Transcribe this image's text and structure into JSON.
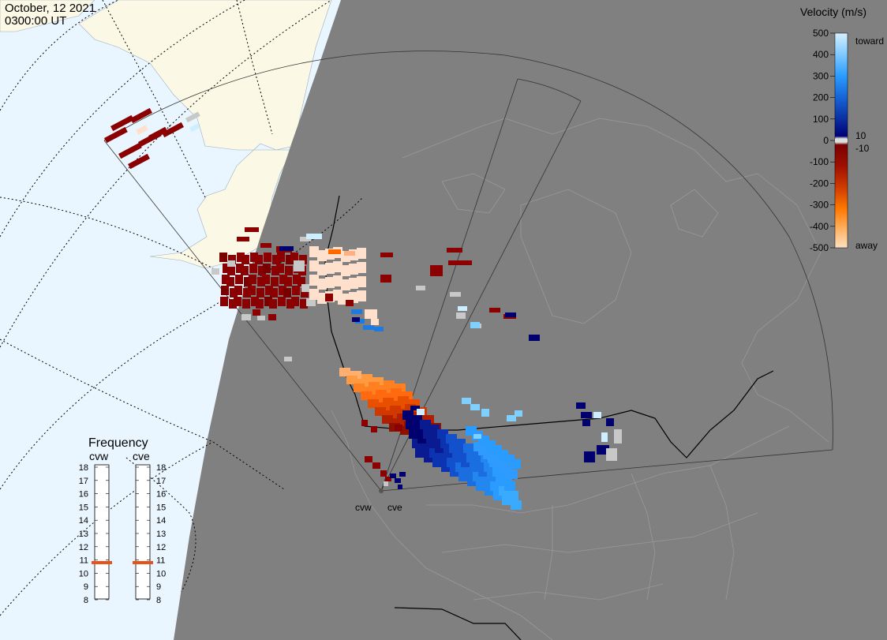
{
  "header": {
    "date": "October, 12 2021",
    "time": "0300:00 UT"
  },
  "colorbar": {
    "title": "Velocity (m/s)",
    "ticks": [
      "500",
      "400",
      "300",
      "200",
      "100",
      "0",
      "-100",
      "-200",
      "-300",
      "-400",
      "-500"
    ],
    "labels": {
      "toward": "toward",
      "away": "away",
      "plus10": "10",
      "minus10": "-10"
    },
    "colors": {
      "top": "#cfeeff",
      "upper": "#33aaff",
      "mid_pos": "#0a3fa8",
      "near_zero_pos": "#00007a",
      "zero_band": "#cccccc",
      "near_zero_neg": "#7a0000",
      "mid_neg": "#c42a00",
      "lower": "#ff8a00",
      "bottom": "#ffd9b3"
    }
  },
  "frequency": {
    "title": "Frequency",
    "radars": [
      {
        "name": "cvw",
        "value": 10.8
      },
      {
        "name": "cve",
        "value": 10.8
      }
    ],
    "ticks": [
      "18",
      "17",
      "16",
      "15",
      "14",
      "13",
      "12",
      "11",
      "10",
      "9",
      "8"
    ],
    "marker_color": "#e8501a"
  },
  "radar_sites": [
    "cvw",
    "cve"
  ],
  "map_colors": {
    "night": "#808080",
    "day_ocean": "#eaf6ff",
    "day_land": "#fbf8e6",
    "night_land_outline": "#9a9a9a"
  }
}
